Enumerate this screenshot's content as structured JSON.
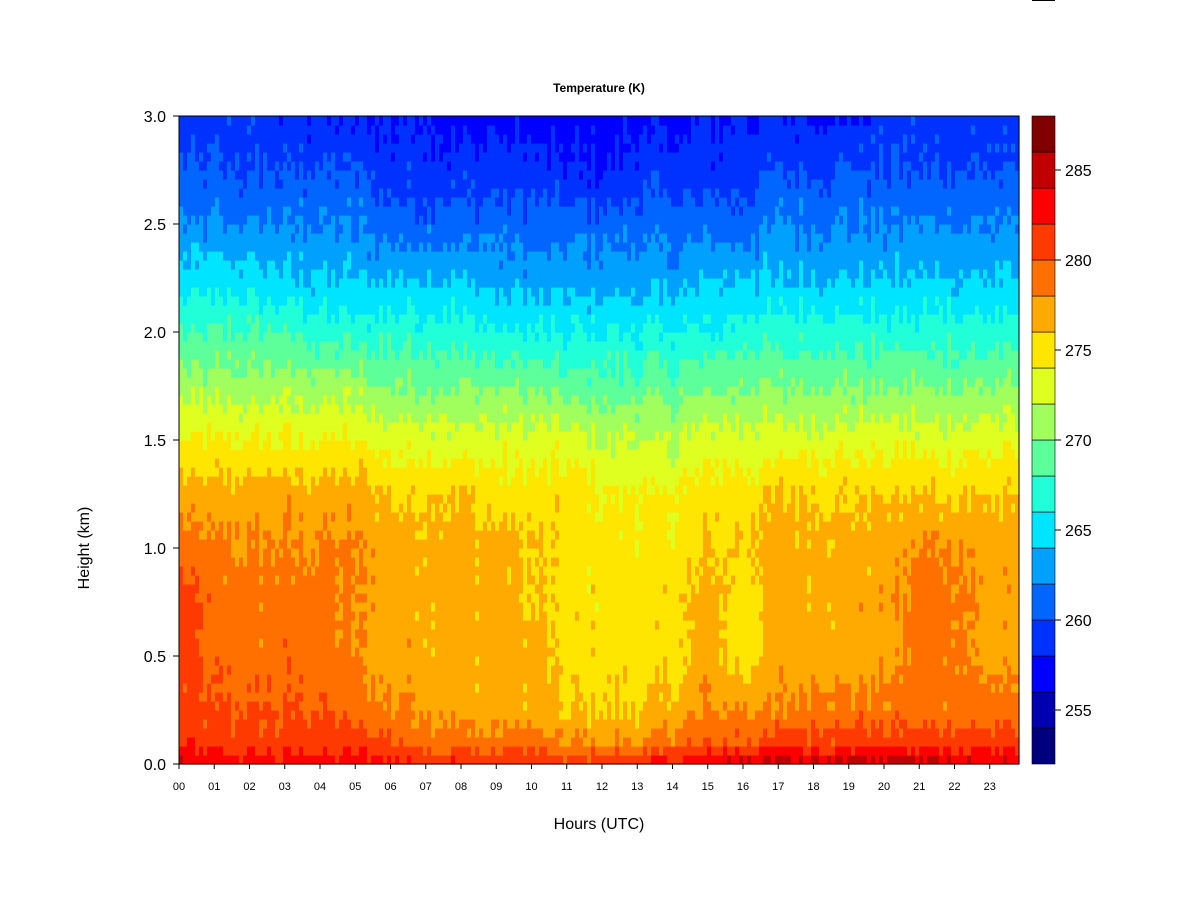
{
  "chart_data": {
    "type": "heatmap",
    "title": "Temperature (K)",
    "xlabel": "Hours (UTC)",
    "ylabel": "Height (km)",
    "xlim": [
      0,
      23.83
    ],
    "ylim": [
      0,
      3.0
    ],
    "x_ticks": [
      "00",
      "01",
      "02",
      "03",
      "04",
      "05",
      "06",
      "07",
      "08",
      "09",
      "10",
      "11",
      "12",
      "13",
      "14",
      "15",
      "16",
      "17",
      "18",
      "19",
      "20",
      "21",
      "22",
      "23"
    ],
    "y_ticks": [
      "0.0",
      "0.5",
      "1.0",
      "1.5",
      "2.0",
      "2.5",
      "3.0"
    ],
    "colorbar": {
      "range": [
        252,
        288
      ],
      "step": 2,
      "tick_labels": [
        "255",
        "260",
        "265",
        "270",
        "275",
        "280",
        "285"
      ],
      "colors": [
        "#00007F",
        "#0000B0",
        "#0000FF",
        "#0032FF",
        "#0066FF",
        "#00A0FF",
        "#00E5FF",
        "#20FFD8",
        "#5CFF9A",
        "#A0FF5C",
        "#DFFF20",
        "#FFE600",
        "#FFAA00",
        "#FF7000",
        "#FF3A00",
        "#FF0000",
        "#C00000",
        "#800000"
      ]
    },
    "heights_km": [
      0,
      0.1,
      0.25,
      0.5,
      0.75,
      1.0,
      1.25,
      1.5,
      1.75,
      2.0,
      2.25,
      2.5,
      2.75,
      3.0
    ],
    "hours": [
      0,
      1,
      2,
      3,
      4,
      5,
      6,
      7,
      8,
      9,
      10,
      11,
      12,
      13,
      14,
      15,
      16,
      17,
      18,
      19,
      20,
      21,
      22,
      23
    ],
    "values_K": [
      [
        284,
        282,
        281,
        281,
        281,
        279,
        277,
        274,
        271,
        268,
        265,
        262,
        260,
        259
      ],
      [
        283,
        281,
        280,
        279,
        279,
        278,
        277,
        274,
        271,
        268,
        265,
        262,
        260,
        259
      ],
      [
        283,
        281,
        280,
        279,
        279,
        278,
        277,
        274,
        271,
        268,
        265,
        262,
        260,
        259
      ],
      [
        283,
        281,
        280,
        279,
        279,
        278,
        277,
        274,
        271,
        268,
        264,
        262,
        260,
        258
      ],
      [
        283,
        281,
        280,
        279,
        279,
        278,
        277,
        274,
        271,
        267,
        264,
        262,
        260,
        258
      ],
      [
        283,
        281,
        279,
        278,
        278,
        278,
        277,
        274,
        271,
        267,
        264,
        262,
        260,
        258
      ],
      [
        283,
        280,
        278,
        277,
        277,
        277,
        276,
        273,
        270,
        267,
        264,
        261,
        259,
        258
      ],
      [
        282,
        279,
        278,
        277,
        277,
        277,
        276,
        273,
        270,
        267,
        264,
        261,
        259,
        258
      ],
      [
        282,
        279,
        277,
        277,
        277,
        277,
        276,
        273,
        270,
        267,
        264,
        261,
        259,
        257
      ],
      [
        282,
        279,
        277,
        277,
        277,
        277,
        275,
        273,
        270,
        266,
        263,
        261,
        259,
        257
      ],
      [
        282,
        279,
        277,
        277,
        276,
        276,
        275,
        273,
        270,
        266,
        263,
        261,
        259,
        257
      ],
      [
        281,
        278,
        276,
        275,
        275,
        275,
        275,
        273,
        269,
        266,
        263,
        261,
        258,
        257
      ],
      [
        281,
        278,
        276,
        275,
        275,
        275,
        274,
        272,
        269,
        266,
        263,
        261,
        258,
        257
      ],
      [
        282,
        278,
        276,
        275,
        275,
        275,
        274,
        272,
        269,
        266,
        263,
        261,
        259,
        257
      ],
      [
        283,
        279,
        277,
        275,
        275,
        275,
        274,
        272,
        269,
        266,
        263,
        261,
        259,
        257
      ],
      [
        284,
        280,
        278,
        277,
        277,
        276,
        275,
        273,
        270,
        266,
        264,
        261,
        259,
        258
      ],
      [
        285,
        280,
        278,
        275,
        275,
        276,
        275,
        273,
        270,
        267,
        264,
        261,
        259,
        258
      ],
      [
        285,
        281,
        278,
        277,
        277,
        277,
        276,
        273,
        270,
        267,
        264,
        262,
        260,
        258
      ],
      [
        285,
        281,
        279,
        277,
        277,
        277,
        276,
        273,
        270,
        267,
        264,
        262,
        260,
        258
      ],
      [
        285,
        281,
        279,
        277,
        277,
        277,
        276,
        273,
        270,
        267,
        264,
        262,
        260,
        258
      ],
      [
        285,
        281,
        279,
        277,
        277,
        277,
        276,
        273,
        270,
        267,
        264,
        262,
        260,
        259
      ],
      [
        285,
        281,
        279,
        279,
        279,
        278,
        276,
        273,
        270,
        267,
        264,
        262,
        260,
        259
      ],
      [
        285,
        281,
        279,
        279,
        279,
        278,
        276,
        273,
        270,
        267,
        264,
        262,
        260,
        259
      ],
      [
        284,
        281,
        279,
        277,
        277,
        277,
        276,
        273,
        270,
        267,
        264,
        262,
        260,
        259
      ]
    ]
  }
}
